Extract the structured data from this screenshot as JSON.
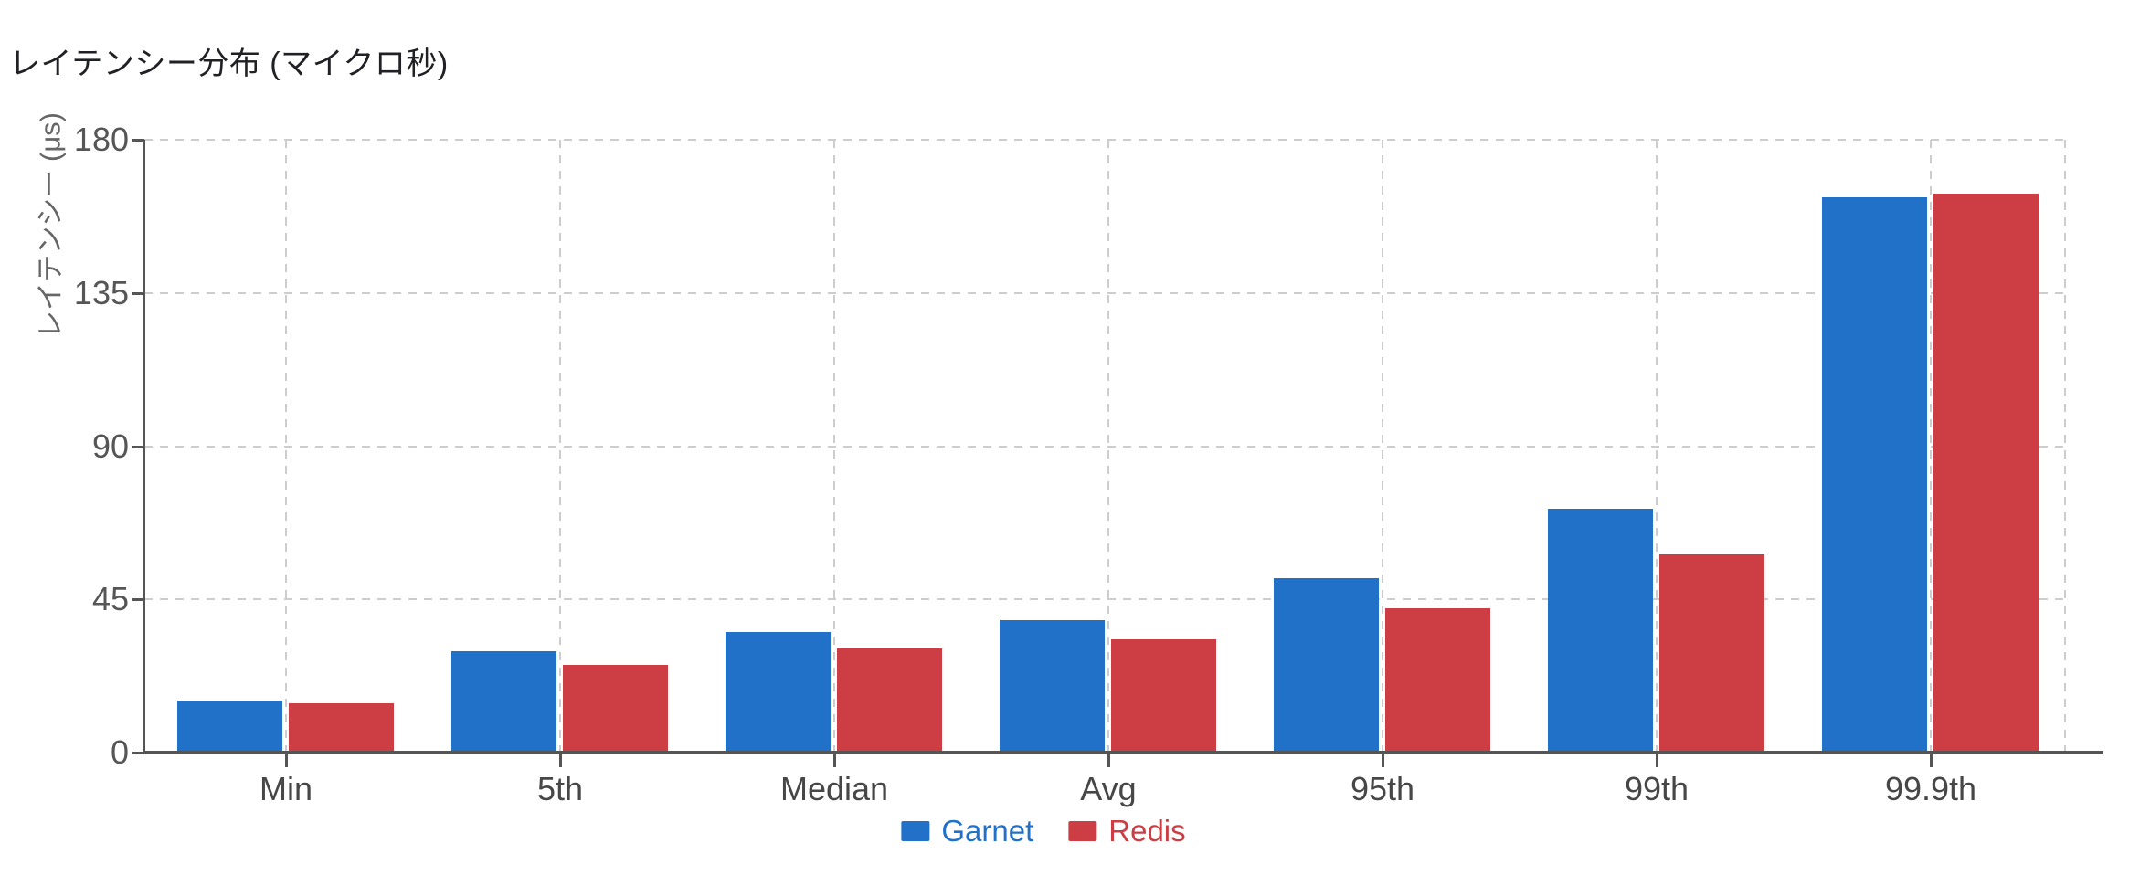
{
  "chart_data": {
    "type": "bar",
    "title": "レイテンシー分布 (マイクロ秒)",
    "ylabel": "レイテンシー (μs)",
    "xlabel": "",
    "categories": [
      "Min",
      "5th",
      "Median",
      "Avg",
      "95th",
      "99th",
      "99.9th"
    ],
    "series": [
      {
        "name": "Garnet",
        "color": "#2171c9",
        "values": [
          15.3,
          29.7,
          35.5,
          38.8,
          51.2,
          71.7,
          163.2
        ]
      },
      {
        "name": "Redis",
        "color": "#cc3e44",
        "values": [
          14.5,
          25.8,
          30.6,
          33.4,
          42.5,
          58.3,
          164.3
        ]
      }
    ],
    "ylim": [
      0,
      180
    ],
    "yticks": [
      0,
      45,
      90,
      135,
      180
    ],
    "grid": true,
    "legend_position": "bottom",
    "colors": {
      "grid": "#cdcdcd",
      "axis": "#555555",
      "y_tick_label": "#565656",
      "category_label": "#474747",
      "title": "#202124",
      "axis_title": "#666666"
    }
  }
}
